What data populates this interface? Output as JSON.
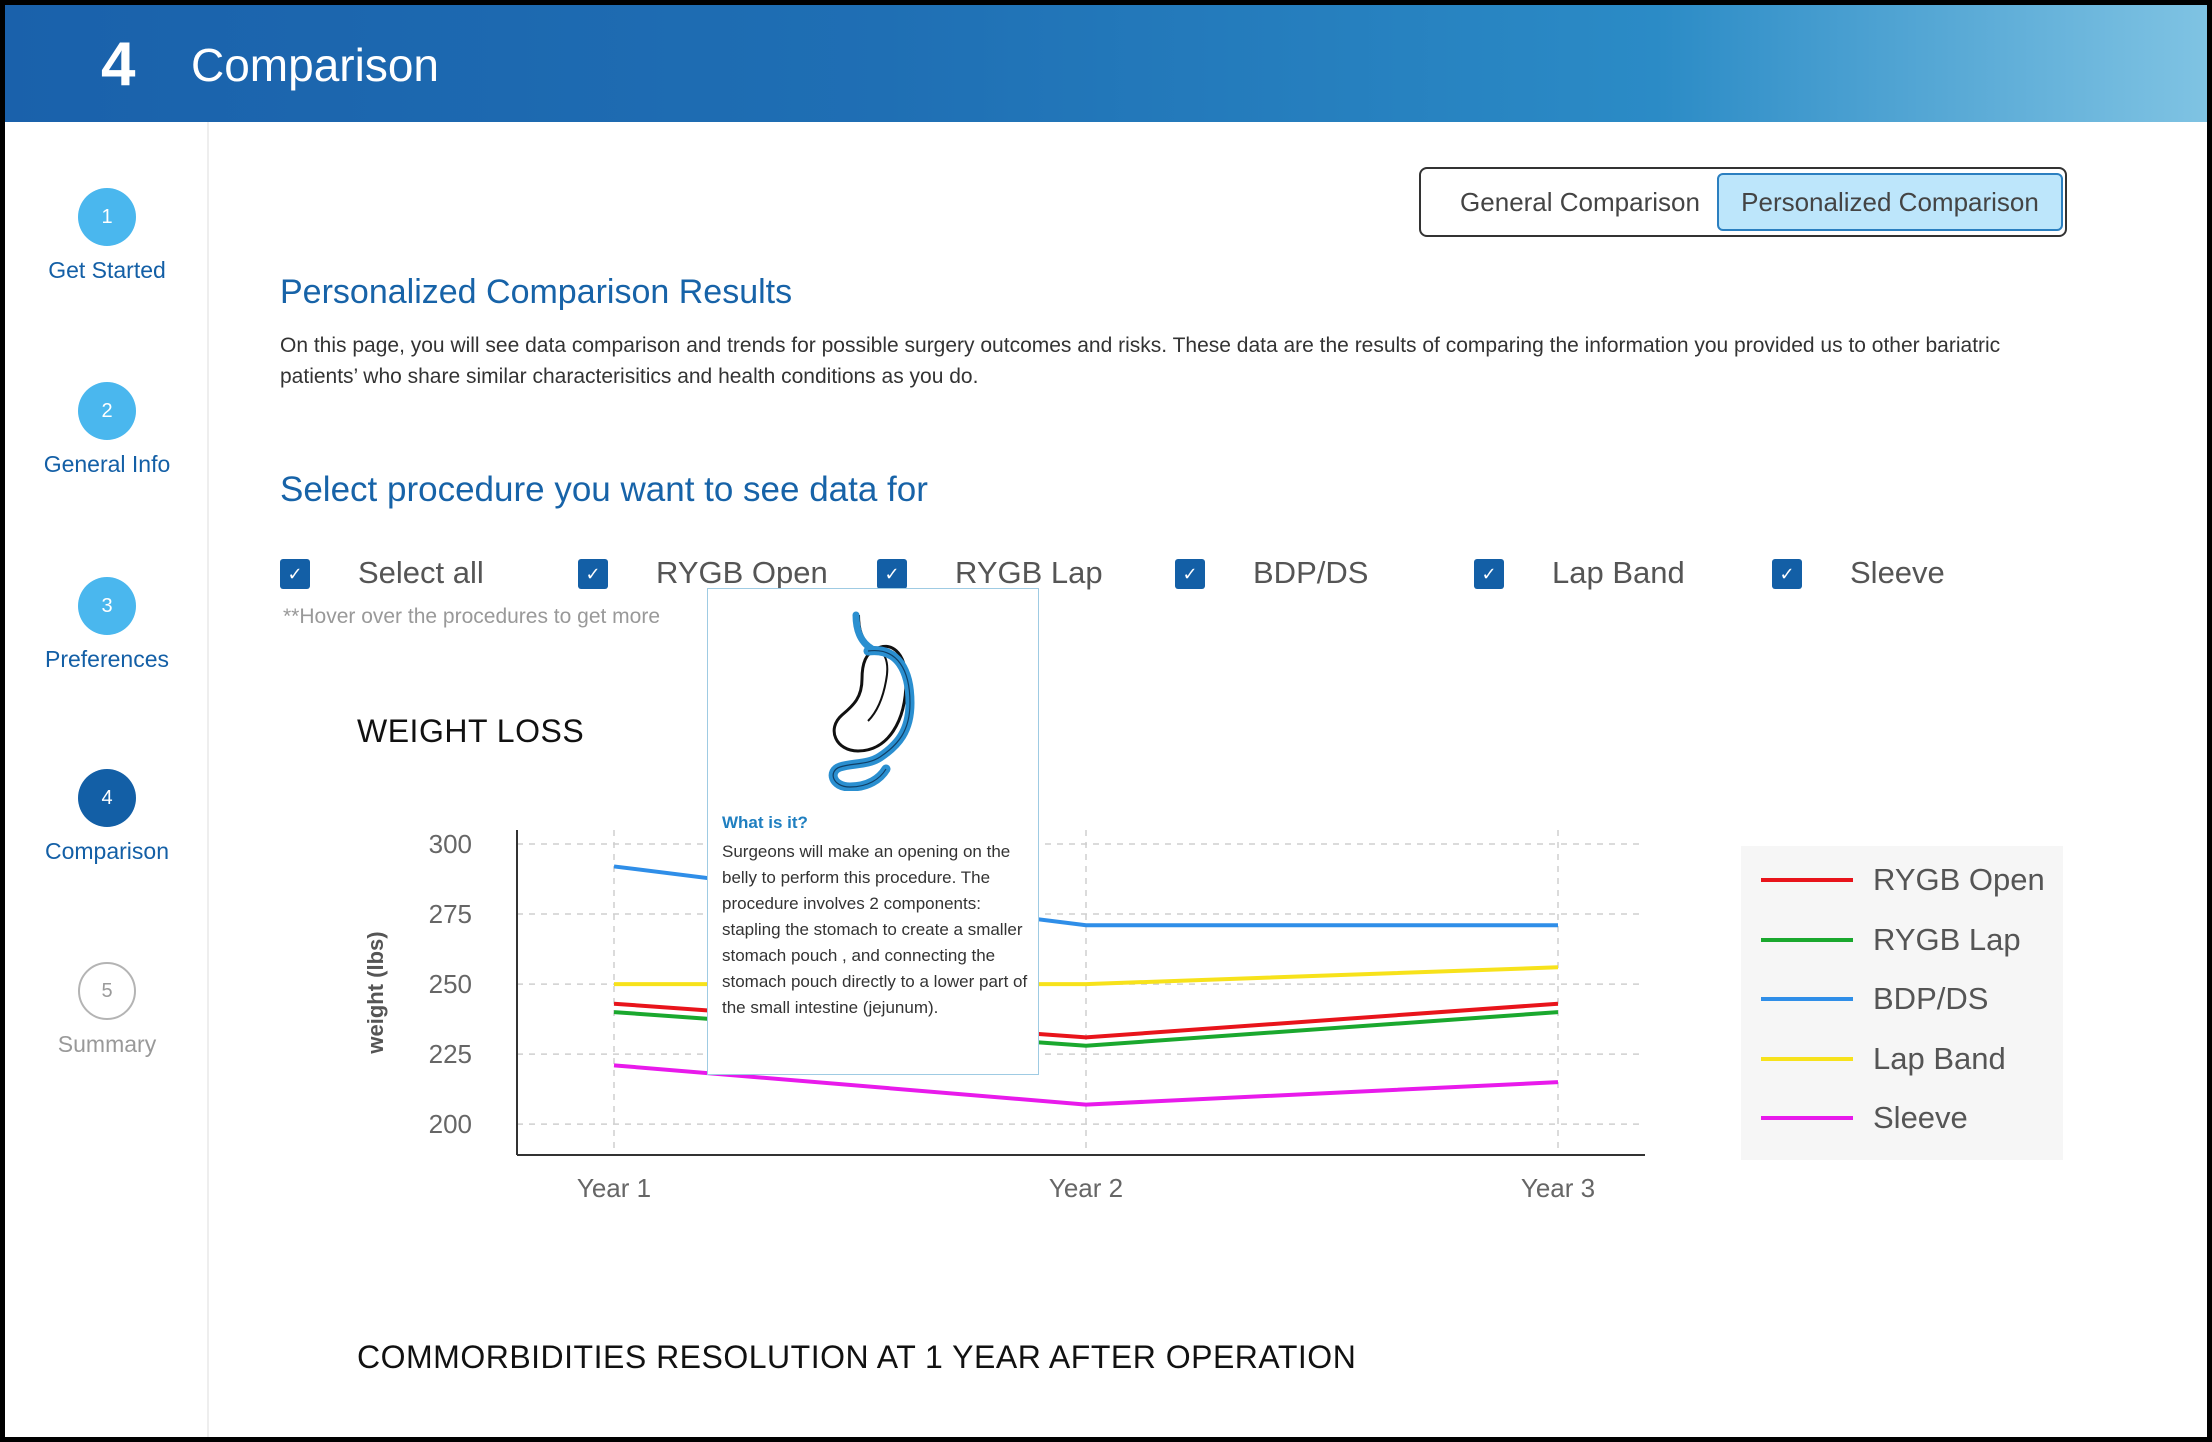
{
  "header": {
    "step_number": "4",
    "title": "Comparison"
  },
  "sidebar": {
    "steps": [
      {
        "number": "1",
        "label": "Get Started",
        "state": "visited"
      },
      {
        "number": "2",
        "label": "General Info",
        "state": "visited"
      },
      {
        "number": "3",
        "label": "Preferences",
        "state": "visited"
      },
      {
        "number": "4",
        "label": "Comparison",
        "state": "current"
      },
      {
        "number": "5",
        "label": "Summary",
        "state": "upcoming"
      }
    ]
  },
  "toggle": {
    "general_label": "General Comparison",
    "personalized_label": "Personalized Comparison",
    "selected": "Personalized Comparison"
  },
  "main": {
    "results_title": "Personalized Comparison Results",
    "intro": "On this page, you will see data comparison and trends for possible surgery outcomes and risks. These data are the results of comparing the information you provided us  to other bariatric patients’ who share similar characterisitics and health conditions as you do.",
    "select_title": "Select procedure you want to see data for",
    "checkboxes": [
      {
        "label": "Select all",
        "checked": true
      },
      {
        "label": "RYGB Open",
        "checked": true
      },
      {
        "label": "RYGB Lap",
        "checked": true
      },
      {
        "label": "BDP/DS",
        "checked": true
      },
      {
        "label": "Lap Band",
        "checked": true
      },
      {
        "label": "Sleeve",
        "checked": true
      }
    ],
    "check_glyph": "✓",
    "hover_hint": "**Hover over the procedures to get more",
    "weight_title": "WEIGHT LOSS",
    "comorb_title": "COMMORBIDITIES RESOLUTION AT 1 YEAR AFTER OPERATION"
  },
  "tooltip": {
    "icon": "stomach-bypass-illustration",
    "title": "What is it?",
    "body": "Surgeons will make an opening on the belly to perform this procedure. The procedure involves 2 components: stapling the stomach to create a smaller stomach pouch , and connecting the stomach pouch directly to a lower part of the small intestine (jejunum)."
  },
  "chart_data": {
    "type": "line",
    "title": "WEIGHT LOSS",
    "xlabel": "",
    "ylabel": "weight (lbs)",
    "categories": [
      "Year 1",
      "Year 2",
      "Year 3"
    ],
    "y_ticks": [
      "300",
      "275",
      "250",
      "225",
      "200"
    ],
    "ylim": [
      189,
      305
    ],
    "grid": true,
    "legend_position": "right",
    "series": [
      {
        "name": "RYGB Open",
        "color": "#e8141b",
        "values": [
          243,
          231,
          243
        ]
      },
      {
        "name": "RYGB Lap",
        "color": "#1aa82e",
        "values": [
          240,
          228,
          240
        ]
      },
      {
        "name": "BDP/DS",
        "color": "#2f8ee8",
        "values": [
          292,
          271,
          271
        ]
      },
      {
        "name": "Lap Band",
        "color": "#f7e21b",
        "values": [
          250,
          250,
          256
        ]
      },
      {
        "name": "Sleeve",
        "color": "#e81aeb",
        "values": [
          221,
          207,
          215
        ]
      }
    ]
  }
}
